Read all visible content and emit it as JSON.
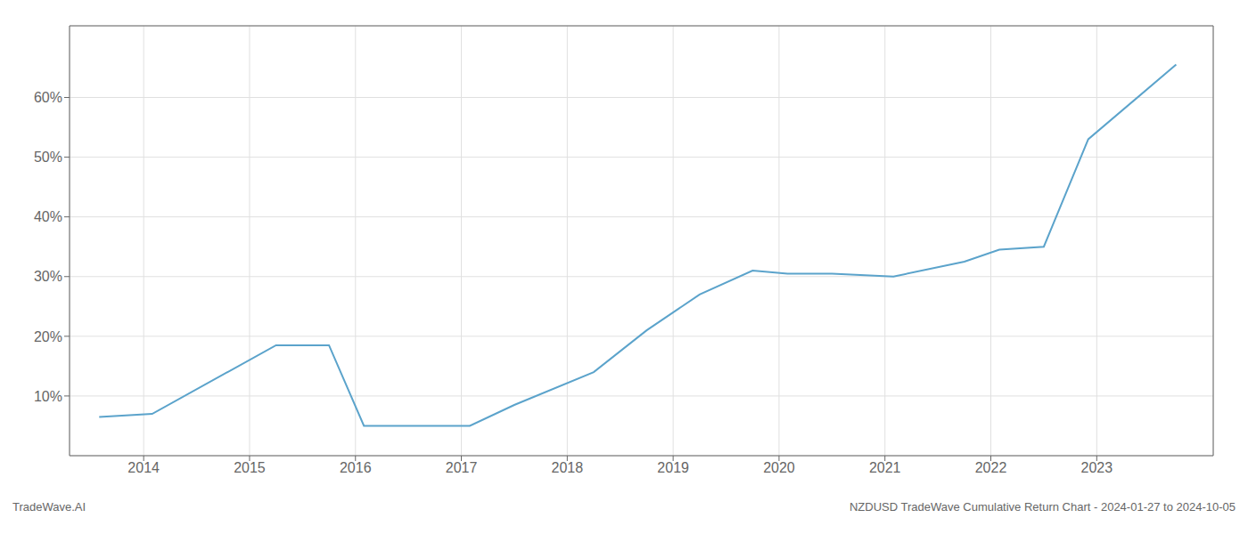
{
  "chart_data": {
    "type": "line",
    "title": "NZDUSD TradeWave Cumulative Return Chart - 2024-01-27 to 2024-10-05",
    "annotations": [
      "TradeWave.AI"
    ],
    "x": [
      2013.58,
      2014.08,
      2015.25,
      2015.75,
      2016.08,
      2016.5,
      2017.08,
      2017.5,
      2018.25,
      2018.75,
      2019.25,
      2019.75,
      2020.08,
      2020.5,
      2021.08,
      2021.75,
      2022.08,
      2022.5,
      2022.92,
      2023.75
    ],
    "values": [
      6.5,
      7.0,
      18.5,
      18.5,
      5.0,
      5.0,
      5.0,
      8.5,
      14.0,
      21.0,
      27.0,
      31.0,
      30.5,
      30.5,
      30.0,
      32.5,
      34.5,
      35.0,
      53.0,
      65.5
    ],
    "color": "#5ba3cb",
    "xlim": [
      2013.3,
      2024.1
    ],
    "xticks": [
      2014,
      2015,
      2016,
      2017,
      2018,
      2019,
      2020,
      2021,
      2022,
      2023
    ],
    "ylim": [
      0,
      72
    ],
    "yticks": [
      {
        "value": 10,
        "label": "10%"
      },
      {
        "value": 20,
        "label": "20%"
      },
      {
        "value": 30,
        "label": "30%"
      },
      {
        "value": 40,
        "label": "40%"
      },
      {
        "value": 50,
        "label": "50%"
      },
      {
        "value": 60,
        "label": "60%"
      }
    ],
    "grid": true
  }
}
